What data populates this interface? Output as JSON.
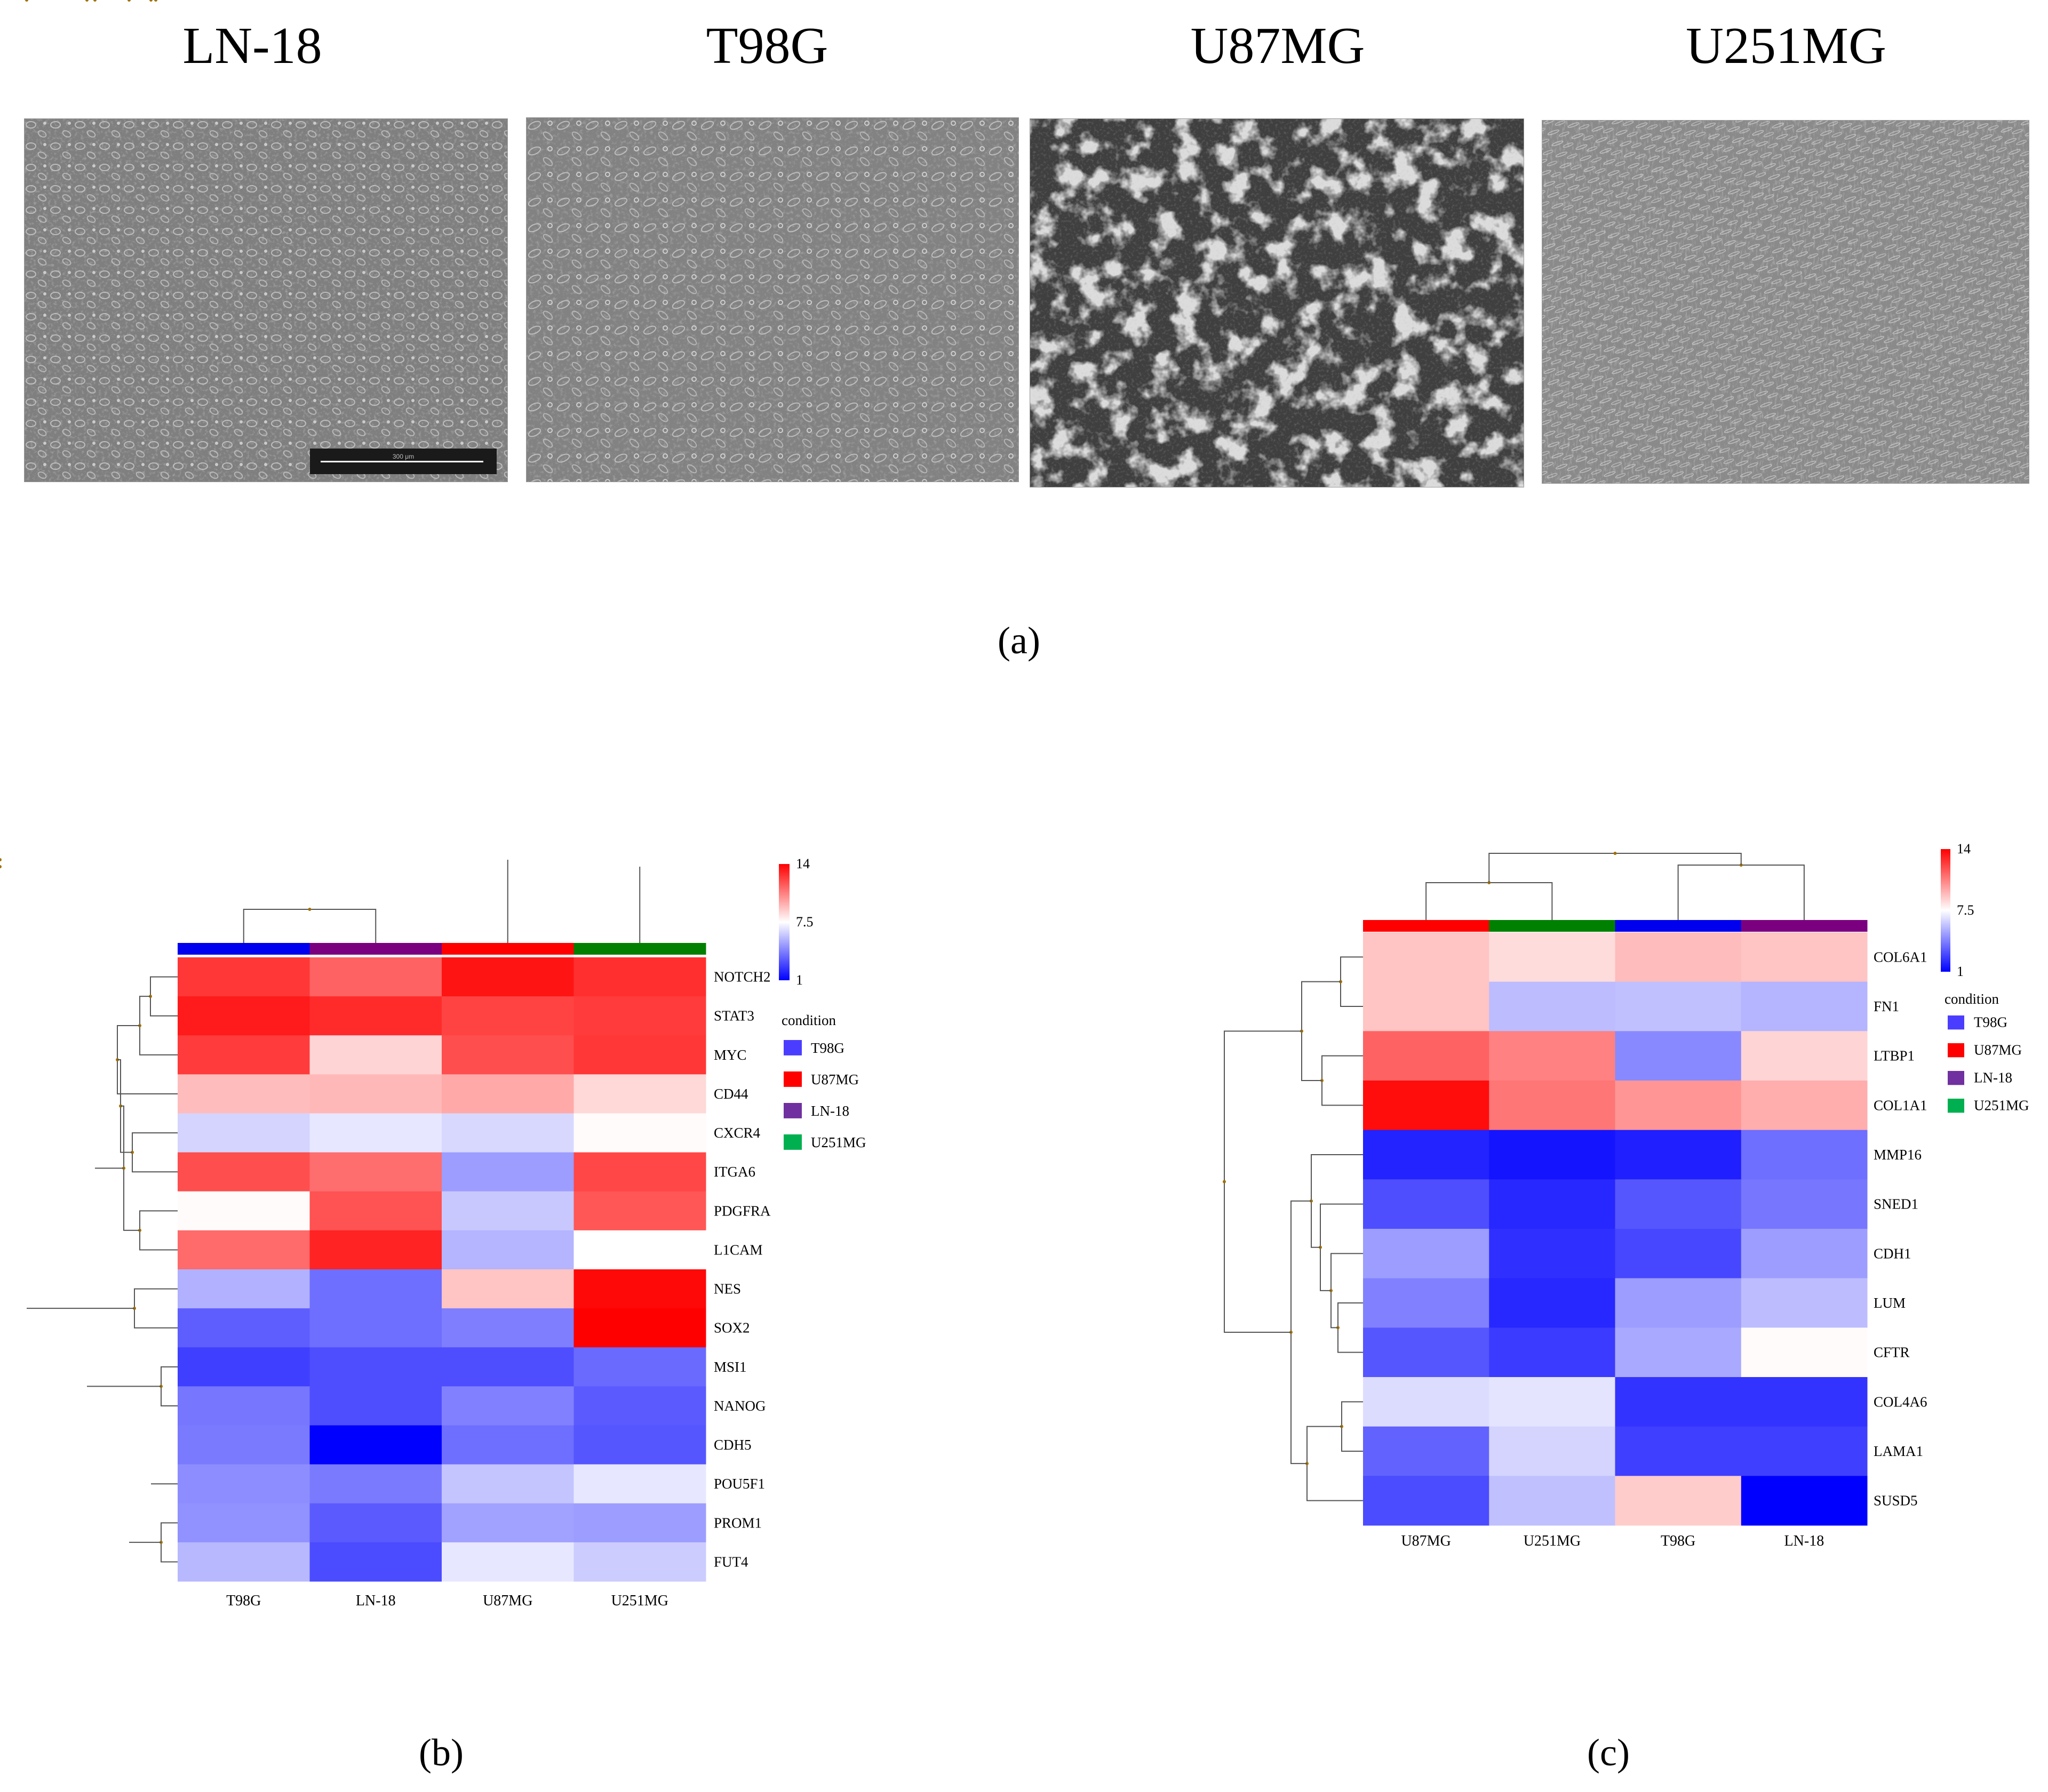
{
  "panel_a": {
    "titles": [
      "LN-18",
      "T98G",
      "U87MG",
      "U251MG"
    ],
    "scale_bar_text": "300 μm",
    "label": "(a)"
  },
  "panel_b_label": "(b)",
  "panel_c_label": "(c)",
  "chart_data": [
    {
      "type": "heatmap",
      "columns": [
        "T98G",
        "LN-18",
        "U87MG",
        "U251MG"
      ],
      "rows": [
        "NOTCH2",
        "STAT3",
        "MYC",
        "CD44",
        "CXCR4",
        "ITGA6",
        "PDGFRA",
        "L1CAM",
        "NES",
        "SOX2",
        "MSI1",
        "NANOG",
        "CDH5",
        "POU5F1",
        "PROM1",
        "FUT4"
      ],
      "values": [
        [
          12.6,
          11.5,
          13.5,
          12.8
        ],
        [
          13.3,
          12.9,
          12.3,
          12.5
        ],
        [
          12.5,
          8.6,
          12.0,
          12.6
        ],
        [
          9.2,
          9.3,
          9.7,
          8.5
        ],
        [
          6.4,
          6.9,
          6.5,
          7.6
        ],
        [
          12.0,
          11.2,
          5.0,
          12.2
        ],
        [
          7.6,
          11.9,
          6.1,
          11.8
        ],
        [
          11.3,
          13.1,
          5.6,
          7.5
        ],
        [
          5.5,
          3.8,
          9.0,
          13.8
        ],
        [
          3.4,
          3.8,
          4.2,
          14.0
        ],
        [
          2.6,
          3.0,
          3.0,
          3.7
        ],
        [
          4.0,
          3.0,
          4.3,
          3.3
        ],
        [
          4.1,
          1.0,
          3.8,
          3.2
        ],
        [
          4.6,
          4.1,
          6.0,
          6.9
        ],
        [
          4.7,
          3.3,
          5.1,
          5.0
        ],
        [
          5.7,
          2.9,
          6.9,
          6.2
        ]
      ],
      "column_colors": [
        "#0000ee",
        "#7b0080",
        "#ff0000",
        "#008000"
      ],
      "colorbar": {
        "min": 1,
        "mid": 7.5,
        "max": 14,
        "labels": [
          "14",
          "7.5",
          "1"
        ]
      },
      "legend": {
        "title": "condition",
        "entries": [
          {
            "label": "T98G",
            "color": "#4b3dff"
          },
          {
            "label": "U87MG",
            "color": "#ff0000"
          },
          {
            "label": "LN-18",
            "color": "#7030a0"
          },
          {
            "label": "U251MG",
            "color": "#00b050"
          }
        ]
      },
      "colors": {
        "low": "#0000ff",
        "mid": "#ffffff",
        "high": "#ff0000"
      }
    },
    {
      "type": "heatmap",
      "columns": [
        "U87MG",
        "U251MG",
        "T98G",
        "LN-18"
      ],
      "rows": [
        "COL6A1",
        "FN1",
        "LTBP1",
        "COL1A1",
        "MMP16",
        "SNED1",
        "CDH1",
        "LUM",
        "CFTR",
        "COL4A6",
        "LAMA1",
        "SUSD5"
      ],
      "values": [
        [
          9.0,
          8.4,
          9.2,
          9.0
        ],
        [
          9.0,
          5.8,
          5.9,
          5.6
        ],
        [
          11.5,
          10.7,
          4.5,
          8.6
        ],
        [
          13.7,
          11.0,
          10.2,
          9.6
        ],
        [
          1.9,
          1.5,
          1.8,
          3.8
        ],
        [
          3.0,
          2.0,
          3.2,
          4.0
        ],
        [
          5.0,
          2.2,
          2.8,
          5.0
        ],
        [
          4.3,
          2.0,
          5.0,
          5.8
        ],
        [
          3.2,
          2.5,
          5.3,
          7.6
        ],
        [
          6.6,
          6.8,
          2.3,
          2.3
        ],
        [
          3.5,
          6.4,
          2.6,
          2.6
        ],
        [
          2.9,
          5.9,
          8.8,
          1.0
        ]
      ],
      "column_colors": [
        "#ff0000",
        "#008000",
        "#0000ee",
        "#7b0080"
      ],
      "colorbar": {
        "min": 1,
        "mid": 7.5,
        "max": 14,
        "labels": [
          "14",
          "7.5",
          "1"
        ]
      },
      "legend": {
        "title": "condition",
        "entries": [
          {
            "label": "T98G",
            "color": "#4b3dff"
          },
          {
            "label": "U87MG",
            "color": "#ff0000"
          },
          {
            "label": "LN-18",
            "color": "#7030a0"
          },
          {
            "label": "U251MG",
            "color": "#00b050"
          }
        ]
      },
      "colors": {
        "low": "#0000ff",
        "mid": "#ffffff",
        "high": "#ff0000"
      }
    }
  ]
}
